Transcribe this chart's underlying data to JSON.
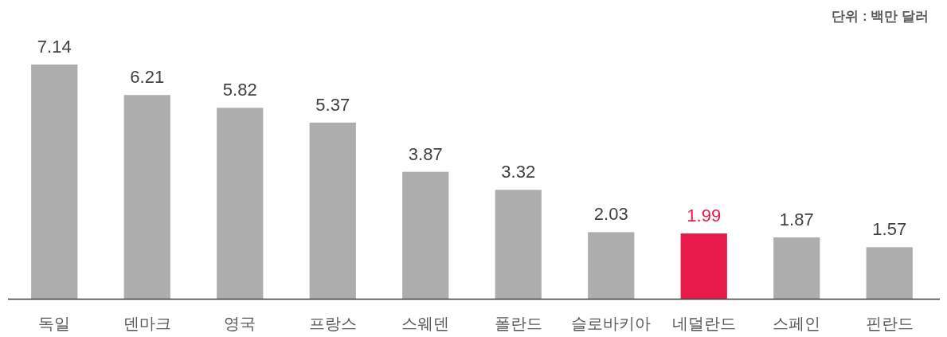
{
  "chart_data": {
    "type": "bar",
    "categories": [
      "독일",
      "덴마크",
      "영국",
      "프랑스",
      "스웨덴",
      "폴란드",
      "슬로바키아",
      "네덜란드",
      "스페인",
      "핀란드"
    ],
    "values": [
      7.14,
      6.21,
      5.82,
      5.37,
      3.87,
      3.32,
      2.03,
      1.99,
      1.87,
      1.57
    ],
    "colors": [
      "#adadad",
      "#adadad",
      "#adadad",
      "#adadad",
      "#adadad",
      "#adadad",
      "#adadad",
      "#e8194b",
      "#adadad",
      "#adadad"
    ],
    "data_labels": true,
    "annotations": [
      "단위 : 백만 달러"
    ]
  }
}
